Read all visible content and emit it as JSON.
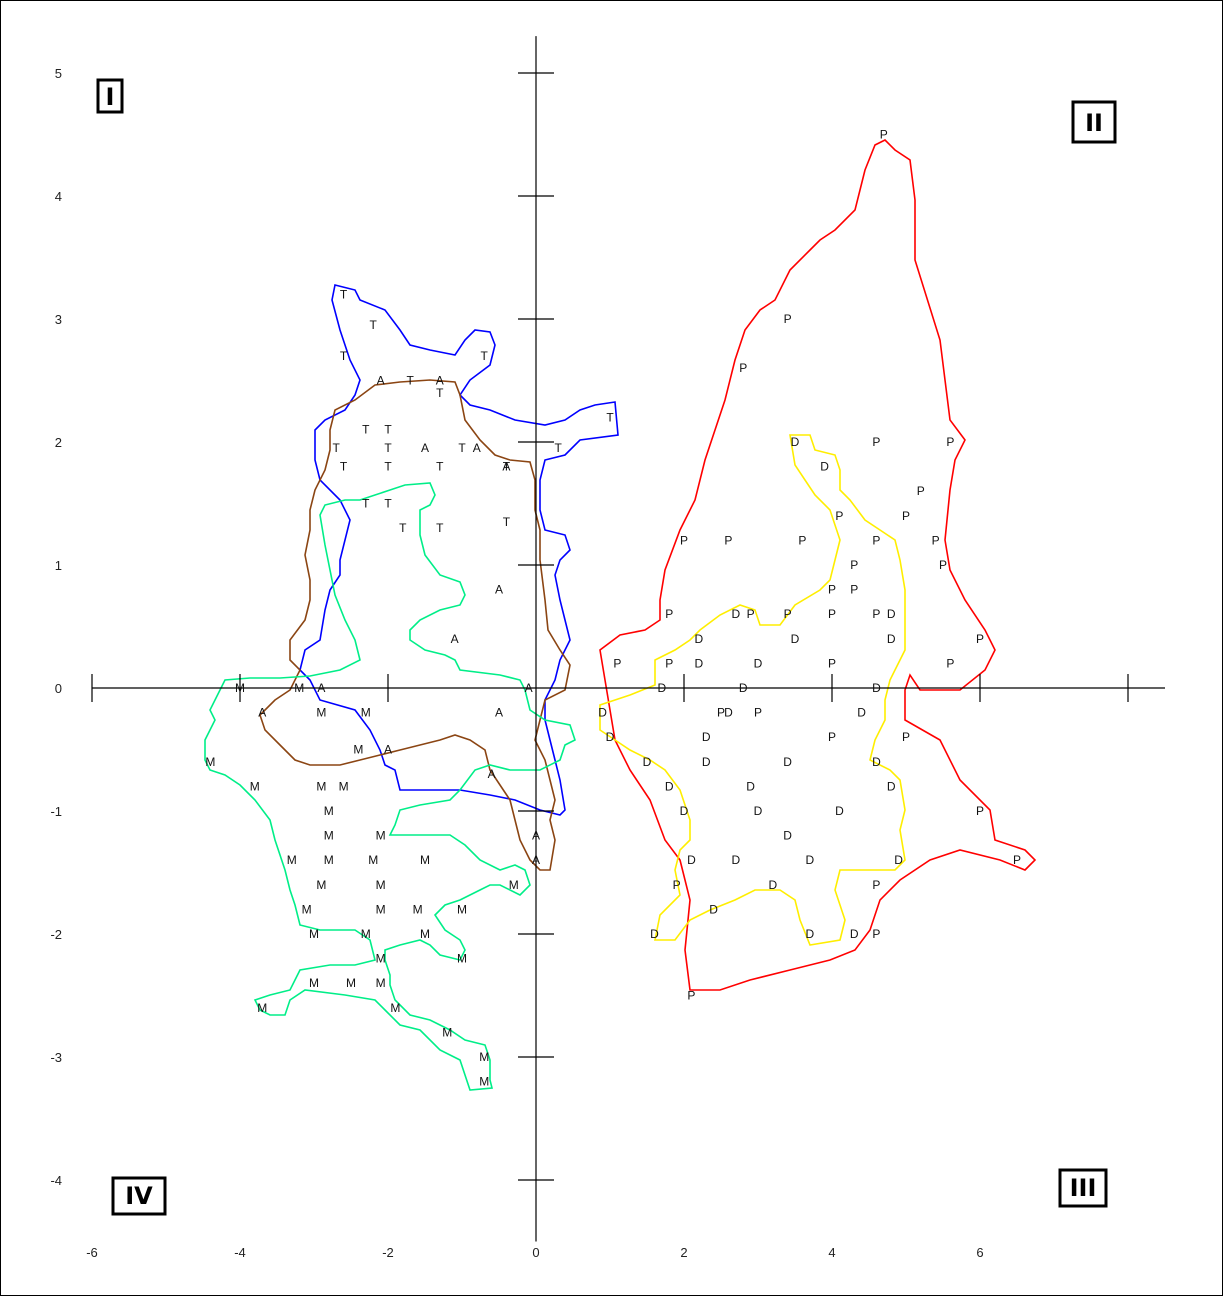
{
  "chart_data": {
    "type": "scatter",
    "xlim": [
      -6,
      8.5
    ],
    "ylim": [
      -4.5,
      5.3
    ],
    "xticks": [
      -6,
      -4,
      -2,
      0,
      2,
      4,
      6
    ],
    "yticks": [
      5,
      4,
      3,
      2,
      1,
      0,
      -1,
      -2,
      -3,
      -4
    ],
    "x_tick_labels": [
      "-6",
      "-4",
      "-2",
      "0",
      "2",
      "4",
      "6"
    ],
    "y_tick_labels": [
      "5",
      "4",
      "3",
      "2",
      "1",
      "0",
      "-1",
      "-2",
      "-3",
      "-4"
    ],
    "grid": false,
    "legend": "none",
    "quadrants": [
      "I",
      "II",
      "III",
      "IV"
    ],
    "colors": {
      "T": "#0000ff",
      "A": "#8b4513",
      "M": "#00ee88",
      "P": "#ff0000",
      "D": "#ffee00"
    },
    "groups": [
      {
        "label": "T",
        "color": "#0000ff",
        "points": [
          [
            -2.6,
            3.2
          ],
          [
            -2.2,
            2.95
          ],
          [
            -2.6,
            2.7
          ],
          [
            -1.7,
            2.5
          ],
          [
            -0.7,
            2.7
          ],
          [
            -1.3,
            2.4
          ],
          [
            1.0,
            2.2
          ],
          [
            -2.3,
            2.1
          ],
          [
            -2.0,
            2.1
          ],
          [
            -2.7,
            1.95
          ],
          [
            -2.0,
            1.95
          ],
          [
            -1.0,
            1.95
          ],
          [
            -2.6,
            1.8
          ],
          [
            -2.0,
            1.8
          ],
          [
            -1.3,
            1.8
          ],
          [
            0.3,
            1.95
          ],
          [
            -2.3,
            1.5
          ],
          [
            -2.0,
            1.5
          ],
          [
            -1.8,
            1.3
          ],
          [
            -1.3,
            1.3
          ],
          [
            -0.4,
            1.8
          ],
          [
            -0.4,
            1.35
          ]
        ]
      },
      {
        "label": "A",
        "color": "#8b4513",
        "points": [
          [
            -2.1,
            2.5
          ],
          [
            -1.3,
            2.5
          ],
          [
            -1.5,
            1.95
          ],
          [
            -0.8,
            1.95
          ],
          [
            -0.4,
            1.8
          ],
          [
            -0.5,
            0.8
          ],
          [
            -1.1,
            0.4
          ],
          [
            -2.9,
            0.0
          ],
          [
            -0.1,
            0.0
          ],
          [
            -3.7,
            -0.2
          ],
          [
            -0.5,
            -0.2
          ],
          [
            -2.0,
            -0.5
          ],
          [
            -0.6,
            -0.7
          ],
          [
            0.0,
            -1.2
          ],
          [
            0.0,
            -1.4
          ]
        ]
      },
      {
        "label": "M",
        "color": "#00ee88",
        "points": [
          [
            -4.0,
            0.0
          ],
          [
            -3.2,
            0.0
          ],
          [
            -2.9,
            -0.2
          ],
          [
            -2.3,
            -0.2
          ],
          [
            -2.4,
            -0.5
          ],
          [
            -4.4,
            -0.6
          ],
          [
            -3.8,
            -0.8
          ],
          [
            -2.9,
            -0.8
          ],
          [
            -2.6,
            -0.8
          ],
          [
            -2.8,
            -1.0
          ],
          [
            -2.8,
            -1.2
          ],
          [
            -2.1,
            -1.2
          ],
          [
            -3.3,
            -1.4
          ],
          [
            -2.8,
            -1.4
          ],
          [
            -2.2,
            -1.4
          ],
          [
            -1.5,
            -1.4
          ],
          [
            -2.9,
            -1.6
          ],
          [
            -2.1,
            -1.6
          ],
          [
            -0.3,
            -1.6
          ],
          [
            -3.1,
            -1.8
          ],
          [
            -2.1,
            -1.8
          ],
          [
            -1.6,
            -1.8
          ],
          [
            -1.0,
            -1.8
          ],
          [
            -3.0,
            -2.0
          ],
          [
            -2.3,
            -2.0
          ],
          [
            -1.5,
            -2.0
          ],
          [
            -1.0,
            -2.2
          ],
          [
            -2.1,
            -2.2
          ],
          [
            -3.0,
            -2.4
          ],
          [
            -2.5,
            -2.4
          ],
          [
            -2.1,
            -2.4
          ],
          [
            -3.7,
            -2.6
          ],
          [
            -1.9,
            -2.6
          ],
          [
            -1.2,
            -2.8
          ],
          [
            -0.7,
            -3.0
          ],
          [
            -0.7,
            -3.2
          ]
        ]
      },
      {
        "label": "P",
        "color": "#ff0000",
        "points": [
          [
            4.7,
            4.5
          ],
          [
            3.4,
            3.0
          ],
          [
            2.8,
            2.6
          ],
          [
            4.6,
            2.0
          ],
          [
            5.6,
            2.0
          ],
          [
            5.2,
            1.6
          ],
          [
            5.0,
            1.4
          ],
          [
            4.1,
            1.4
          ],
          [
            2.0,
            1.2
          ],
          [
            2.6,
            1.2
          ],
          [
            3.6,
            1.2
          ],
          [
            4.6,
            1.2
          ],
          [
            5.4,
            1.2
          ],
          [
            5.5,
            1.0
          ],
          [
            4.3,
            1.0
          ],
          [
            4.0,
            0.8
          ],
          [
            4.3,
            0.8
          ],
          [
            1.8,
            0.6
          ],
          [
            2.9,
            0.6
          ],
          [
            3.4,
            0.6
          ],
          [
            4.0,
            0.6
          ],
          [
            4.6,
            0.6
          ],
          [
            6.0,
            0.4
          ],
          [
            1.1,
            0.2
          ],
          [
            1.8,
            0.2
          ],
          [
            4.0,
            0.2
          ],
          [
            5.6,
            0.2
          ],
          [
            2.5,
            -0.2
          ],
          [
            3.0,
            -0.2
          ],
          [
            4.0,
            -0.4
          ],
          [
            5.0,
            -0.4
          ],
          [
            6.5,
            -1.4
          ],
          [
            6.0,
            -1.0
          ],
          [
            1.9,
            -1.6
          ],
          [
            4.6,
            -1.6
          ],
          [
            4.6,
            -2.0
          ],
          [
            2.1,
            -2.5
          ]
        ]
      },
      {
        "label": "D",
        "color": "#ffee00",
        "points": [
          [
            3.5,
            2.0
          ],
          [
            3.9,
            1.8
          ],
          [
            4.8,
            0.6
          ],
          [
            2.7,
            0.6
          ],
          [
            4.8,
            0.4
          ],
          [
            3.5,
            0.4
          ],
          [
            2.2,
            0.4
          ],
          [
            2.2,
            0.2
          ],
          [
            3.0,
            0.2
          ],
          [
            1.7,
            0.0
          ],
          [
            2.8,
            0.0
          ],
          [
            4.6,
            0.0
          ],
          [
            0.9,
            -0.2
          ],
          [
            2.6,
            -0.2
          ],
          [
            4.4,
            -0.2
          ],
          [
            1.0,
            -0.4
          ],
          [
            2.3,
            -0.4
          ],
          [
            1.5,
            -0.6
          ],
          [
            2.3,
            -0.6
          ],
          [
            3.4,
            -0.6
          ],
          [
            4.6,
            -0.6
          ],
          [
            1.8,
            -0.8
          ],
          [
            2.9,
            -0.8
          ],
          [
            4.8,
            -0.8
          ],
          [
            2.0,
            -1.0
          ],
          [
            3.0,
            -1.0
          ],
          [
            4.1,
            -1.0
          ],
          [
            3.4,
            -1.2
          ],
          [
            2.1,
            -1.4
          ],
          [
            2.7,
            -1.4
          ],
          [
            3.7,
            -1.4
          ],
          [
            4.9,
            -1.4
          ],
          [
            3.2,
            -1.6
          ],
          [
            2.4,
            -1.8
          ],
          [
            1.6,
            -2.0
          ],
          [
            3.7,
            -2.0
          ],
          [
            4.3,
            -2.0
          ]
        ]
      }
    ]
  }
}
